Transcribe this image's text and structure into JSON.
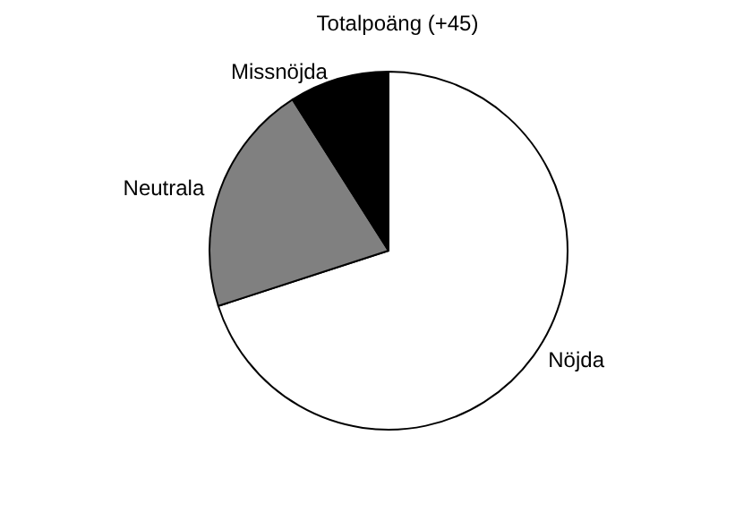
{
  "chart_data": {
    "type": "pie",
    "title": "Totalpoäng (+45)",
    "categories": [
      "Nöjda",
      "Neutrala",
      "Missnöjda"
    ],
    "values": [
      70,
      21,
      9
    ],
    "colors": [
      "#ffffff",
      "#808080",
      "#000000"
    ],
    "legend": false
  }
}
